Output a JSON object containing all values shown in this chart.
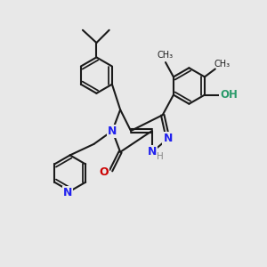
{
  "background_color": "#e8e8e8",
  "bond_color": "#1a1a1a",
  "n_color": "#2222ee",
  "o_color": "#cc0000",
  "oh_color": "#2a9a6a",
  "h_color": "#888888",
  "lw": 1.5,
  "dbo": 0.065,
  "figsize": [
    3.0,
    3.0
  ],
  "dpi": 100,
  "xlim": [
    0,
    10
  ],
  "ylim": [
    0,
    10
  ]
}
